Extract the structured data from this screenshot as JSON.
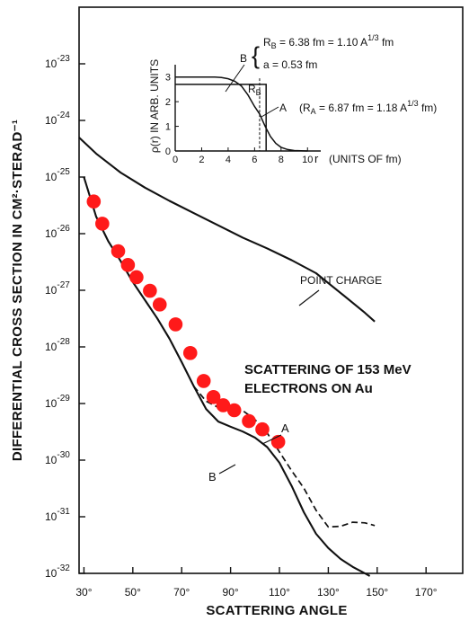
{
  "chart_data": {
    "type": "line",
    "title": "",
    "xlabel": "SCATTERING ANGLE",
    "ylabel": "DIFFERENTIAL CROSS SECTION IN CM²·STERAD⁻¹",
    "x_scale": "linear",
    "y_scale": "log",
    "xlim": [
      28,
      185
    ],
    "ylim": [
      1e-32,
      1e-22
    ],
    "x_ticks": [
      30,
      50,
      70,
      90,
      110,
      130,
      150,
      170
    ],
    "x_tick_labels": [
      "30°",
      "50°",
      "70°",
      "90°",
      "110°",
      "130°",
      "150°",
      "170°"
    ],
    "y_ticks": [
      1e-23,
      1e-24,
      1e-25,
      1e-26,
      1e-27,
      1e-28,
      1e-29,
      1e-30,
      1e-31,
      1e-32
    ],
    "y_tick_labels": [
      {
        "base": "10",
        "exp": "-23"
      },
      {
        "base": "10",
        "exp": "-24"
      },
      {
        "base": "10",
        "exp": "-25"
      },
      {
        "base": "10",
        "exp": "-26"
      },
      {
        "base": "10",
        "exp": "-27"
      },
      {
        "base": "10",
        "exp": "-28"
      },
      {
        "base": "10",
        "exp": "-29"
      },
      {
        "base": "10",
        "exp": "-30"
      },
      {
        "base": "10",
        "exp": "-31"
      },
      {
        "base": "10",
        "exp": "-32"
      }
    ],
    "grid": false,
    "series": [
      {
        "name": "POINT CHARGE",
        "style": "solid",
        "x": [
          28,
          35,
          45,
          55,
          65,
          75,
          85,
          95,
          105,
          115,
          125,
          135,
          145,
          149
        ],
        "y": [
          5e-25,
          2.6e-25,
          1.2e-25,
          6.5e-26,
          3.8e-26,
          2.3e-26,
          1.4e-26,
          8.5e-27,
          5.5e-27,
          3.4e-27,
          2e-27,
          9e-28,
          4e-28,
          2.8e-28
        ]
      },
      {
        "name": "A",
        "style": "dashed",
        "x": [
          30,
          35,
          40,
          45,
          50,
          55,
          60,
          65,
          70,
          75,
          80,
          85,
          90,
          95,
          100,
          105,
          110,
          115,
          120,
          125,
          130,
          135,
          140,
          145,
          149
        ],
        "y": [
          1e-25,
          2e-26,
          7.3e-27,
          3.3e-27,
          1.4e-27,
          6.7e-28,
          3.2e-28,
          1.4e-28,
          5.4e-29,
          2e-29,
          1.1e-29,
          8.5e-30,
          8.5e-30,
          7.5e-30,
          5.2e-30,
          3e-30,
          1.4e-30,
          6.5e-31,
          3.2e-31,
          1.3e-31,
          6.6e-32,
          6.8e-32,
          8e-32,
          7.8e-32,
          7e-32
        ]
      },
      {
        "name": "B",
        "style": "solid",
        "x": [
          30,
          35,
          40,
          45,
          50,
          55,
          60,
          65,
          70,
          75,
          80,
          85,
          90,
          95,
          100,
          105,
          110,
          115,
          120,
          125,
          130,
          135,
          140,
          145,
          147
        ],
        "y": [
          1e-25,
          2e-26,
          7.3e-27,
          3.3e-27,
          1.4e-27,
          6.7e-28,
          3.2e-28,
          1.4e-28,
          5.4e-29,
          2e-29,
          8e-30,
          4.8e-30,
          3.9e-30,
          3.2e-30,
          2.5e-30,
          1.7e-30,
          9e-31,
          3.5e-31,
          1.2e-31,
          5e-32,
          2.8e-32,
          1.8e-32,
          1.3e-32,
          1e-32,
          9e-33
        ]
      },
      {
        "name": "",
        "style": "points",
        "x": [
          34,
          37.5,
          44,
          48,
          51.5,
          57,
          61,
          67.5,
          73.5,
          79,
          83,
          87,
          91.5,
          97.5,
          103,
          109.5
        ],
        "y": [
          3.7e-26,
          1.5e-26,
          4.9e-27,
          2.8e-27,
          1.7e-27,
          9.8e-28,
          5.6e-28,
          2.5e-28,
          7.8e-29,
          2.5e-29,
          1.3e-29,
          9.3e-30,
          7.6e-30,
          4.9e-30,
          3.5e-30,
          2.1e-30
        ]
      }
    ],
    "annotations": {
      "point_charge": "POINT CHARGE",
      "curve_a": "A",
      "curve_b": "B",
      "title_line1": "SCATTERING OF 153 MeV",
      "title_line2": "ELECTRONS ON Au"
    },
    "inset": {
      "type": "line",
      "ylabel": "ρ(r) IN ARB. UNITS",
      "xlabel": "r",
      "xlabel_units": "(UNITS OF fm)",
      "xlim": [
        0,
        11
      ],
      "ylim": [
        0,
        3.5
      ],
      "x_ticks": [
        0,
        2,
        4,
        6,
        8,
        10
      ],
      "y_ticks": [
        0,
        1,
        2,
        3
      ],
      "RB_label": "R",
      "RB_sub": "B",
      "RB_value": 6.38,
      "RA_value": 6.87,
      "label_b": "B",
      "label_a": "A",
      "eq_b_line1": {
        "lhs": "R",
        "sub": "B",
        "text": " = 6.38 fm = 1.10 A",
        "sup": "1/3",
        "tail": " fm"
      },
      "eq_b_line2": "a = 0.53 fm",
      "eq_a": {
        "lhs": "(R",
        "sub": "A",
        "text": " = 6.87 fm = 1.18 A",
        "sup": "1/3",
        "tail": " fm)"
      },
      "series": [
        {
          "name": "A",
          "style": "step",
          "x": [
            0,
            6.87,
            6.87
          ],
          "y": [
            2.7,
            2.7,
            0
          ]
        },
        {
          "name": "B",
          "style": "solid",
          "x": [
            0,
            1,
            2,
            3,
            3.5,
            4,
            4.5,
            5,
            5.5,
            6,
            6.38,
            6.8,
            7.2,
            7.6,
            8,
            8.5,
            9,
            9.5,
            10
          ],
          "y": [
            3.0,
            3.0,
            3.0,
            3.0,
            2.98,
            2.93,
            2.83,
            2.64,
            2.27,
            1.8,
            1.5,
            1.0,
            0.59,
            0.31,
            0.15,
            0.06,
            0.02,
            0.01,
            0.0
          ]
        }
      ]
    }
  }
}
